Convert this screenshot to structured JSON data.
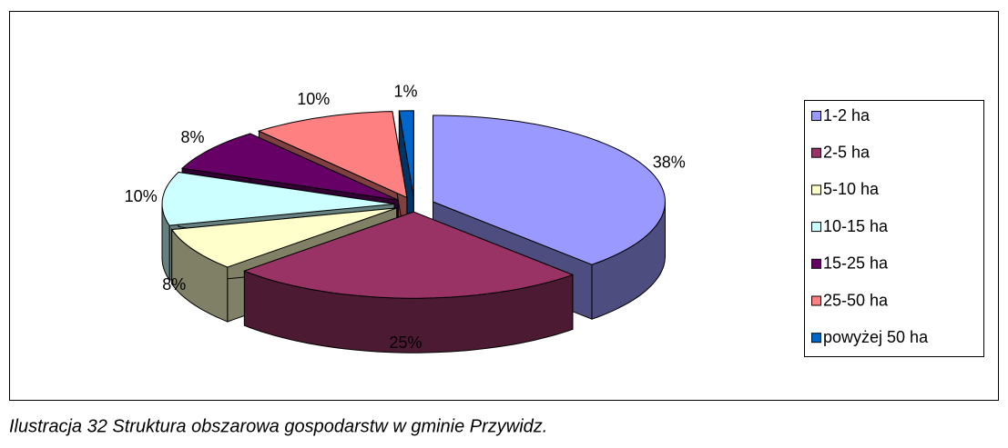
{
  "chart_data": {
    "type": "pie3d",
    "categories": [
      "1-2 ha",
      "2-5 ha",
      "5-10 ha",
      "10-15 ha",
      "15-25 ha",
      "25-50 ha",
      "powyżej 50 ha"
    ],
    "values": [
      38,
      25,
      8,
      10,
      8,
      10,
      1
    ],
    "value_labels": [
      "38%",
      "25%",
      "8%",
      "10%",
      "8%",
      "10%",
      "1%"
    ],
    "colors": [
      "#9999ff",
      "#993366",
      "#ffffcc",
      "#ccffff",
      "#660066",
      "#ff8080",
      "#0066cc"
    ],
    "legend": "right",
    "caption": "Ilustracja 32 Struktura obszarowa gospodarstw w gminie Przywidz."
  }
}
